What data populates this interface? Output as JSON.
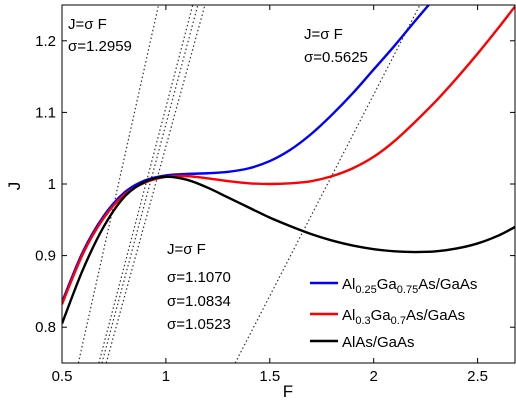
{
  "chart_data": {
    "type": "line",
    "xlabel": "F",
    "ylabel": "J",
    "xlim": [
      0.5,
      2.68
    ],
    "ylim": [
      0.75,
      1.25
    ],
    "xticks": [
      "0.5",
      "1",
      "1.5",
      "2",
      "2.5"
    ],
    "yticks": [
      "0.8",
      "0.9",
      "1",
      "1.1",
      "1.2"
    ],
    "grid": false,
    "legend_position": "bottom-right",
    "series": [
      {
        "name": "Al0.25Ga0.75As/GaAs",
        "legend": {
          "p1": "Al",
          "s1": "0.25",
          "p2": "Ga",
          "s2": "0.75",
          "p3": "As/GaAs"
        },
        "color": "#0000ff",
        "x": [
          0.5,
          0.6,
          0.7,
          0.8,
          0.9,
          1.0,
          1.1,
          1.2,
          1.3,
          1.4,
          1.5,
          1.6,
          1.7,
          1.8,
          1.9,
          2.0,
          2.1,
          2.2,
          2.3
        ],
        "y": [
          0.835,
          0.905,
          0.955,
          0.988,
          1.005,
          1.012,
          1.014,
          1.015,
          1.017,
          1.022,
          1.032,
          1.048,
          1.07,
          1.097,
          1.127,
          1.16,
          1.193,
          1.228,
          1.262
        ]
      },
      {
        "name": "Al0.3Ga0.7As/GaAs",
        "legend": {
          "p1": "Al",
          "s1": "0.3",
          "p2": "Ga",
          "s2": "0.7",
          "p3": "As/GaAs"
        },
        "color": "#ff0000",
        "x": [
          0.5,
          0.6,
          0.7,
          0.8,
          0.9,
          1.0,
          1.1,
          1.2,
          1.3,
          1.4,
          1.5,
          1.6,
          1.7,
          1.8,
          1.9,
          2.0,
          2.1,
          2.2,
          2.3,
          2.4,
          2.5,
          2.6,
          2.68
        ],
        "y": [
          0.832,
          0.902,
          0.952,
          0.985,
          1.002,
          1.01,
          1.011,
          1.008,
          1.004,
          1.001,
          1.0,
          1.001,
          1.004,
          1.011,
          1.022,
          1.038,
          1.06,
          1.087,
          1.116,
          1.148,
          1.182,
          1.218,
          1.248
        ]
      },
      {
        "name": "AlAs/GaAs",
        "legend": {
          "p1": "AlAs/GaAs",
          "s1": "",
          "p2": "",
          "s2": "",
          "p3": ""
        },
        "color": "#000000",
        "x": [
          0.5,
          0.6,
          0.7,
          0.8,
          0.9,
          1.0,
          1.1,
          1.2,
          1.3,
          1.4,
          1.5,
          1.6,
          1.7,
          1.8,
          1.9,
          2.0,
          2.1,
          2.2,
          2.3,
          2.4,
          2.5,
          2.6,
          2.68
        ],
        "y": [
          0.805,
          0.88,
          0.94,
          0.982,
          1.003,
          1.01,
          1.006,
          0.995,
          0.981,
          0.967,
          0.953,
          0.941,
          0.93,
          0.921,
          0.914,
          0.909,
          0.906,
          0.905,
          0.906,
          0.91,
          0.917,
          0.928,
          0.94
        ]
      }
    ],
    "load_lines": [
      {
        "label": "J=σ F",
        "sigma_label": "σ=1.2959",
        "sigma": 1.2959,
        "color": "#333333",
        "style": "dotted"
      },
      {
        "label": "J=σ F",
        "sigma_label": "σ=1.1070",
        "sigma": 1.107,
        "color": "#333333",
        "style": "dotted"
      },
      {
        "label": "J=σ F",
        "sigma_label": "σ=1.0834",
        "sigma": 1.0834,
        "color": "#333333",
        "style": "dotted"
      },
      {
        "label": "J=σ F",
        "sigma_label": "σ=1.0523",
        "sigma": 1.0523,
        "color": "#333333",
        "style": "dotted"
      },
      {
        "label": "J=σ F",
        "sigma_label": "σ=0.5625",
        "sigma": 0.5625,
        "color": "#333333",
        "style": "dotted"
      }
    ],
    "annotations": {
      "top_left": {
        "label": "J=σ F",
        "sigma": "σ=1.2959"
      },
      "top_right": {
        "label": "J=σ F",
        "sigma": "σ=0.5625"
      },
      "middle": {
        "label": "J=σ F",
        "sigmas": [
          "σ=1.1070",
          "σ=1.0834",
          "σ=1.0523"
        ]
      }
    }
  }
}
